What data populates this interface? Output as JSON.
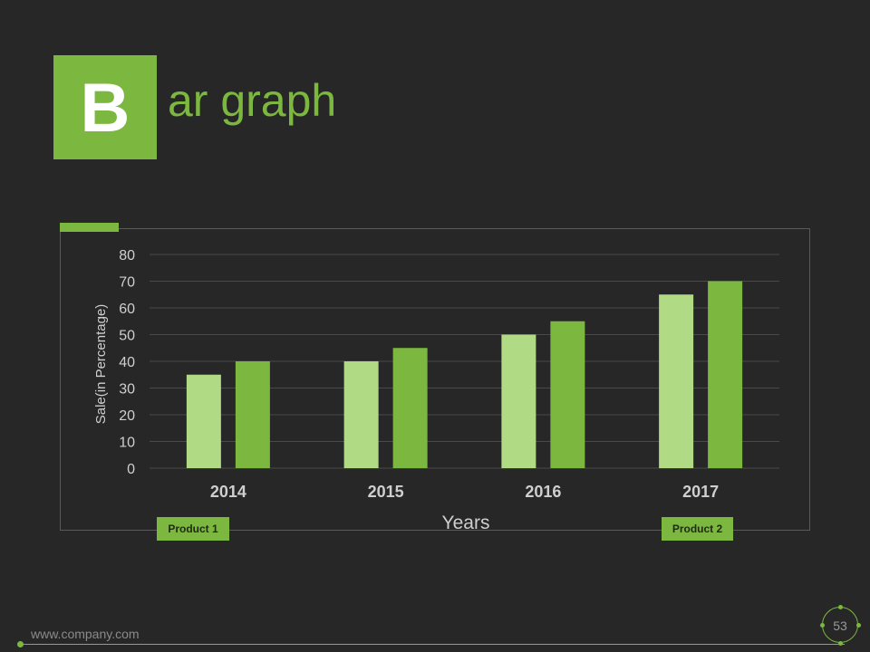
{
  "slide": {
    "title_letter": "B",
    "title_rest": "ar graph",
    "footer_url": "www.company.com",
    "page_number": "53"
  },
  "colors": {
    "background": "#272727",
    "accent": "#7cb83f",
    "product1": "#b0db84",
    "product2": "#7cb83f",
    "gridline": "#4a4a4a",
    "axis_text": "#cfcfcf"
  },
  "chart_data": {
    "type": "bar",
    "title": "",
    "xlabel": "Years",
    "ylabel": "Sale(in Percentage)",
    "ylim": [
      0,
      80
    ],
    "yticks": [
      0,
      10,
      20,
      30,
      40,
      50,
      60,
      70,
      80
    ],
    "categories": [
      "2014",
      "2015",
      "2016",
      "2017"
    ],
    "series": [
      {
        "name": "Product 1",
        "values": [
          35,
          40,
          50,
          65
        ]
      },
      {
        "name": "Product 2",
        "values": [
          40,
          45,
          55,
          70
        ]
      }
    ],
    "grid": true,
    "legend": "bottom"
  }
}
